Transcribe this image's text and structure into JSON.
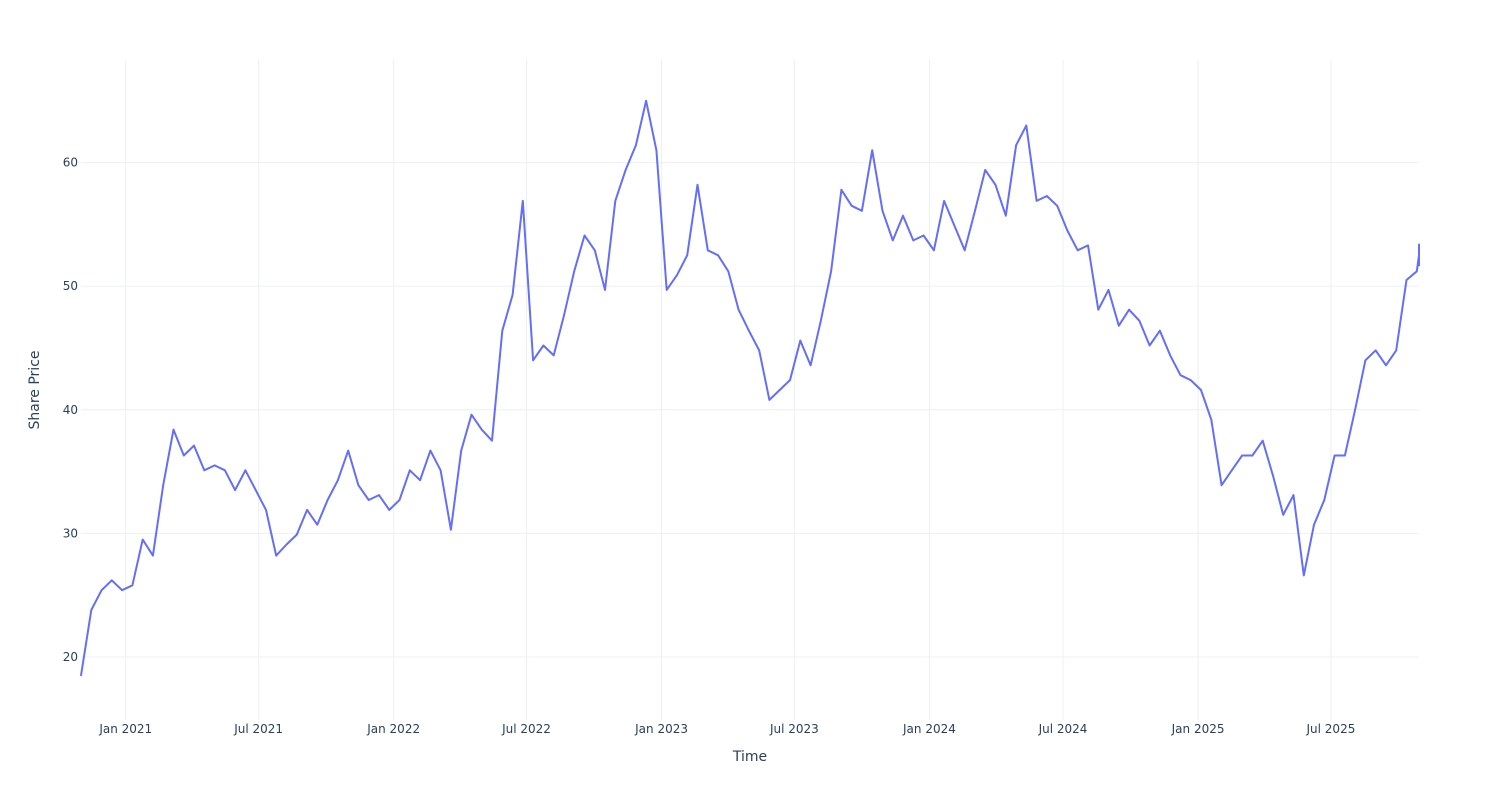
{
  "chart_data": {
    "type": "line",
    "title": "",
    "xlabel": "Time",
    "ylabel": "Share Price",
    "x_start": "2020-11-01",
    "x_step_days": 14,
    "xlim": [
      "2020-11-01",
      "2025-10-29"
    ],
    "ylim": [
      14.9,
      68.3
    ],
    "grid": true,
    "line_color": "#636efa",
    "grid_color": "#ebf0f8",
    "x_ticks": [
      {
        "date": "2021-01-01",
        "label": "Jan 2021"
      },
      {
        "date": "2021-07-01",
        "label": "Jul 2021"
      },
      {
        "date": "2022-01-01",
        "label": "Jan 2022"
      },
      {
        "date": "2022-07-01",
        "label": "Jul 2022"
      },
      {
        "date": "2023-01-01",
        "label": "Jan 2023"
      },
      {
        "date": "2023-07-01",
        "label": "Jul 2023"
      },
      {
        "date": "2024-01-01",
        "label": "Jan 2024"
      },
      {
        "date": "2024-07-01",
        "label": "Jul 2024"
      },
      {
        "date": "2025-01-01",
        "label": "Jan 2025"
      },
      {
        "date": "2025-07-01",
        "label": "Jul 2025"
      }
    ],
    "y_ticks": [
      {
        "value": 20,
        "label": "20"
      },
      {
        "value": 30,
        "label": "30"
      },
      {
        "value": 40,
        "label": "40"
      },
      {
        "value": 50,
        "label": "50"
      },
      {
        "value": 60,
        "label": "60"
      }
    ],
    "series": [
      {
        "name": "Share Price",
        "values": [
          18.5,
          23.8,
          25.4,
          26.2,
          25.4,
          25.8,
          29.5,
          28.2,
          33.9,
          38.4,
          36.3,
          37.1,
          35.1,
          35.5,
          35.1,
          33.5,
          35.1,
          33.5,
          31.9,
          28.2,
          29.1,
          29.9,
          31.9,
          30.7,
          32.7,
          34.3,
          36.7,
          33.9,
          32.7,
          33.1,
          31.9,
          32.7,
          35.1,
          34.3,
          36.7,
          35.1,
          30.3,
          36.7,
          39.6,
          38.4,
          37.5,
          46.4,
          49.3,
          56.9,
          44.0,
          45.2,
          44.4,
          47.6,
          51.2,
          54.1,
          52.9,
          49.7,
          56.9,
          59.4,
          61.4,
          65.0,
          61.0,
          49.7,
          50.9,
          52.5,
          58.2,
          52.9,
          52.5,
          51.2,
          48.1,
          46.4,
          44.8,
          40.8,
          41.6,
          42.4,
          45.6,
          43.6,
          47.2,
          51.2,
          57.8,
          56.5,
          56.1,
          61.0,
          56.1,
          53.7,
          55.7,
          53.7,
          54.1,
          52.9,
          56.9,
          54.9,
          52.9,
          56.1,
          59.4,
          58.2,
          55.7,
          61.4,
          63.0,
          56.9,
          57.3,
          56.5,
          54.5,
          52.9,
          53.3,
          48.1,
          49.7,
          46.8,
          48.1,
          47.2,
          45.2,
          46.4,
          44.4,
          42.8,
          42.4,
          41.6,
          39.2,
          33.9,
          35.1,
          36.3,
          36.3,
          37.5,
          34.7,
          31.5,
          33.1,
          26.6,
          30.7,
          32.7,
          36.3,
          36.3,
          40.0,
          44.0,
          44.8,
          43.6,
          44.8,
          50.5,
          51.2,
          52.5,
          52.1,
          51.7,
          53.4
        ]
      }
    ]
  }
}
